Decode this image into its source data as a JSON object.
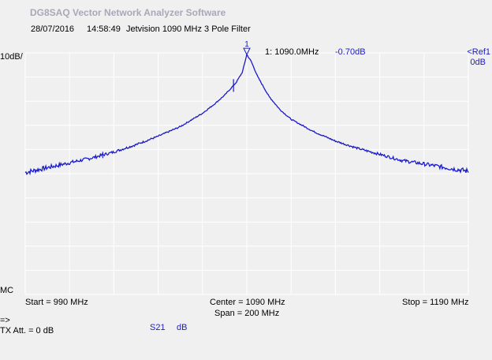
{
  "app": {
    "title": "DG8SAQ Vector Network Analyzer Software"
  },
  "header": {
    "date": "28/07/2016",
    "time": "14:58:49",
    "description": "Jetvision 1090 MHz 3 Pole Filter"
  },
  "marker": {
    "id": "1",
    "readout_freq": "1: 1090.0MHz",
    "readout_value": "-0.70dB"
  },
  "left_scale": {
    "per_div": "10dB/"
  },
  "right_scale": {
    "ref_label": "<Ref1",
    "ref_value": "0dB"
  },
  "mc_label": "MC",
  "footer": {
    "start": "Start = 990 MHz",
    "center": "Center = 1090 MHz",
    "span": "Span = 200 MHz",
    "stop": "Stop = 1190 MHz",
    "arrow": "=>",
    "tx_att": "TX Att.   = 0 dB",
    "trace_name": "S21",
    "trace_unit": "dB"
  },
  "colors": {
    "trace": "#1a1acc",
    "grid": "#ffffff",
    "background": "#f0f0f0"
  },
  "chart_data": {
    "type": "line",
    "xlim": [
      990,
      1190
    ],
    "ylim": [
      -100,
      0
    ],
    "x_unit": "MHz",
    "y_unit": "dB",
    "grid": true,
    "series": [
      {
        "name": "S21",
        "x": [
          990,
          1000,
          1010,
          1020,
          1030,
          1040,
          1050,
          1060,
          1070,
          1075,
          1080,
          1085,
          1088,
          1090,
          1092,
          1095,
          1100,
          1105,
          1110,
          1120,
          1130,
          1140,
          1150,
          1160,
          1170,
          1180,
          1190
        ],
        "y": [
          -49.5,
          -47.5,
          -45.5,
          -43.5,
          -41.0,
          -38.0,
          -34.5,
          -30.5,
          -25.0,
          -21.5,
          -17.5,
          -12.5,
          -8.0,
          -0.7,
          -3.5,
          -10.0,
          -18.0,
          -23.5,
          -27.5,
          -32.5,
          -36.5,
          -39.5,
          -42.0,
          -44.5,
          -46.0,
          -47.5,
          -49.0
        ]
      }
    ],
    "markers": [
      {
        "label": "1",
        "x": 1090,
        "y": -0.7
      }
    ]
  }
}
